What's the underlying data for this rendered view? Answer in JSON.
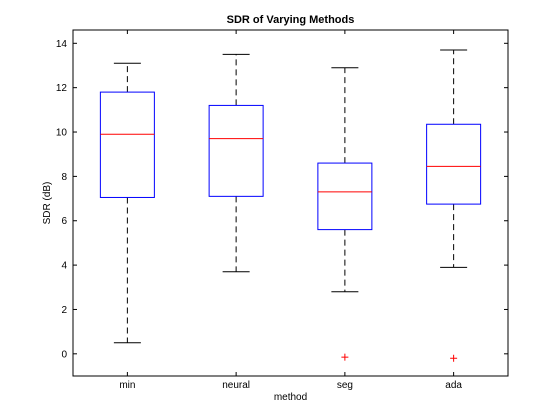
{
  "chart_data": {
    "type": "box",
    "title": "SDR of Varying Methods",
    "xlabel": "method",
    "ylabel": "SDR (dB)",
    "ylim": [
      -1,
      14.6
    ],
    "yticks": [
      0,
      2,
      4,
      6,
      8,
      10,
      12,
      14
    ],
    "categories": [
      "min",
      "neural",
      "seg",
      "ada"
    ],
    "boxes": [
      {
        "category": "min",
        "whisker_low": 0.5,
        "q1": 7.05,
        "median": 9.9,
        "q3": 11.8,
        "whisker_high": 13.1,
        "outliers": []
      },
      {
        "category": "neural",
        "whisker_low": 3.7,
        "q1": 7.1,
        "median": 9.7,
        "q3": 11.2,
        "whisker_high": 13.5,
        "outliers": []
      },
      {
        "category": "seg",
        "whisker_low": 2.8,
        "q1": 5.6,
        "median": 7.3,
        "q3": 8.6,
        "whisker_high": 12.9,
        "outliers": [
          -0.15
        ]
      },
      {
        "category": "ada",
        "whisker_low": 3.9,
        "q1": 6.75,
        "median": 8.45,
        "q3": 10.35,
        "whisker_high": 13.7,
        "outliers": [
          -0.2
        ]
      }
    ],
    "colors": {
      "box": "#0000ff",
      "median": "#ff0000",
      "whisker": "#000000",
      "outlier": "#ff0000"
    },
    "grid": false,
    "legend": "none"
  }
}
